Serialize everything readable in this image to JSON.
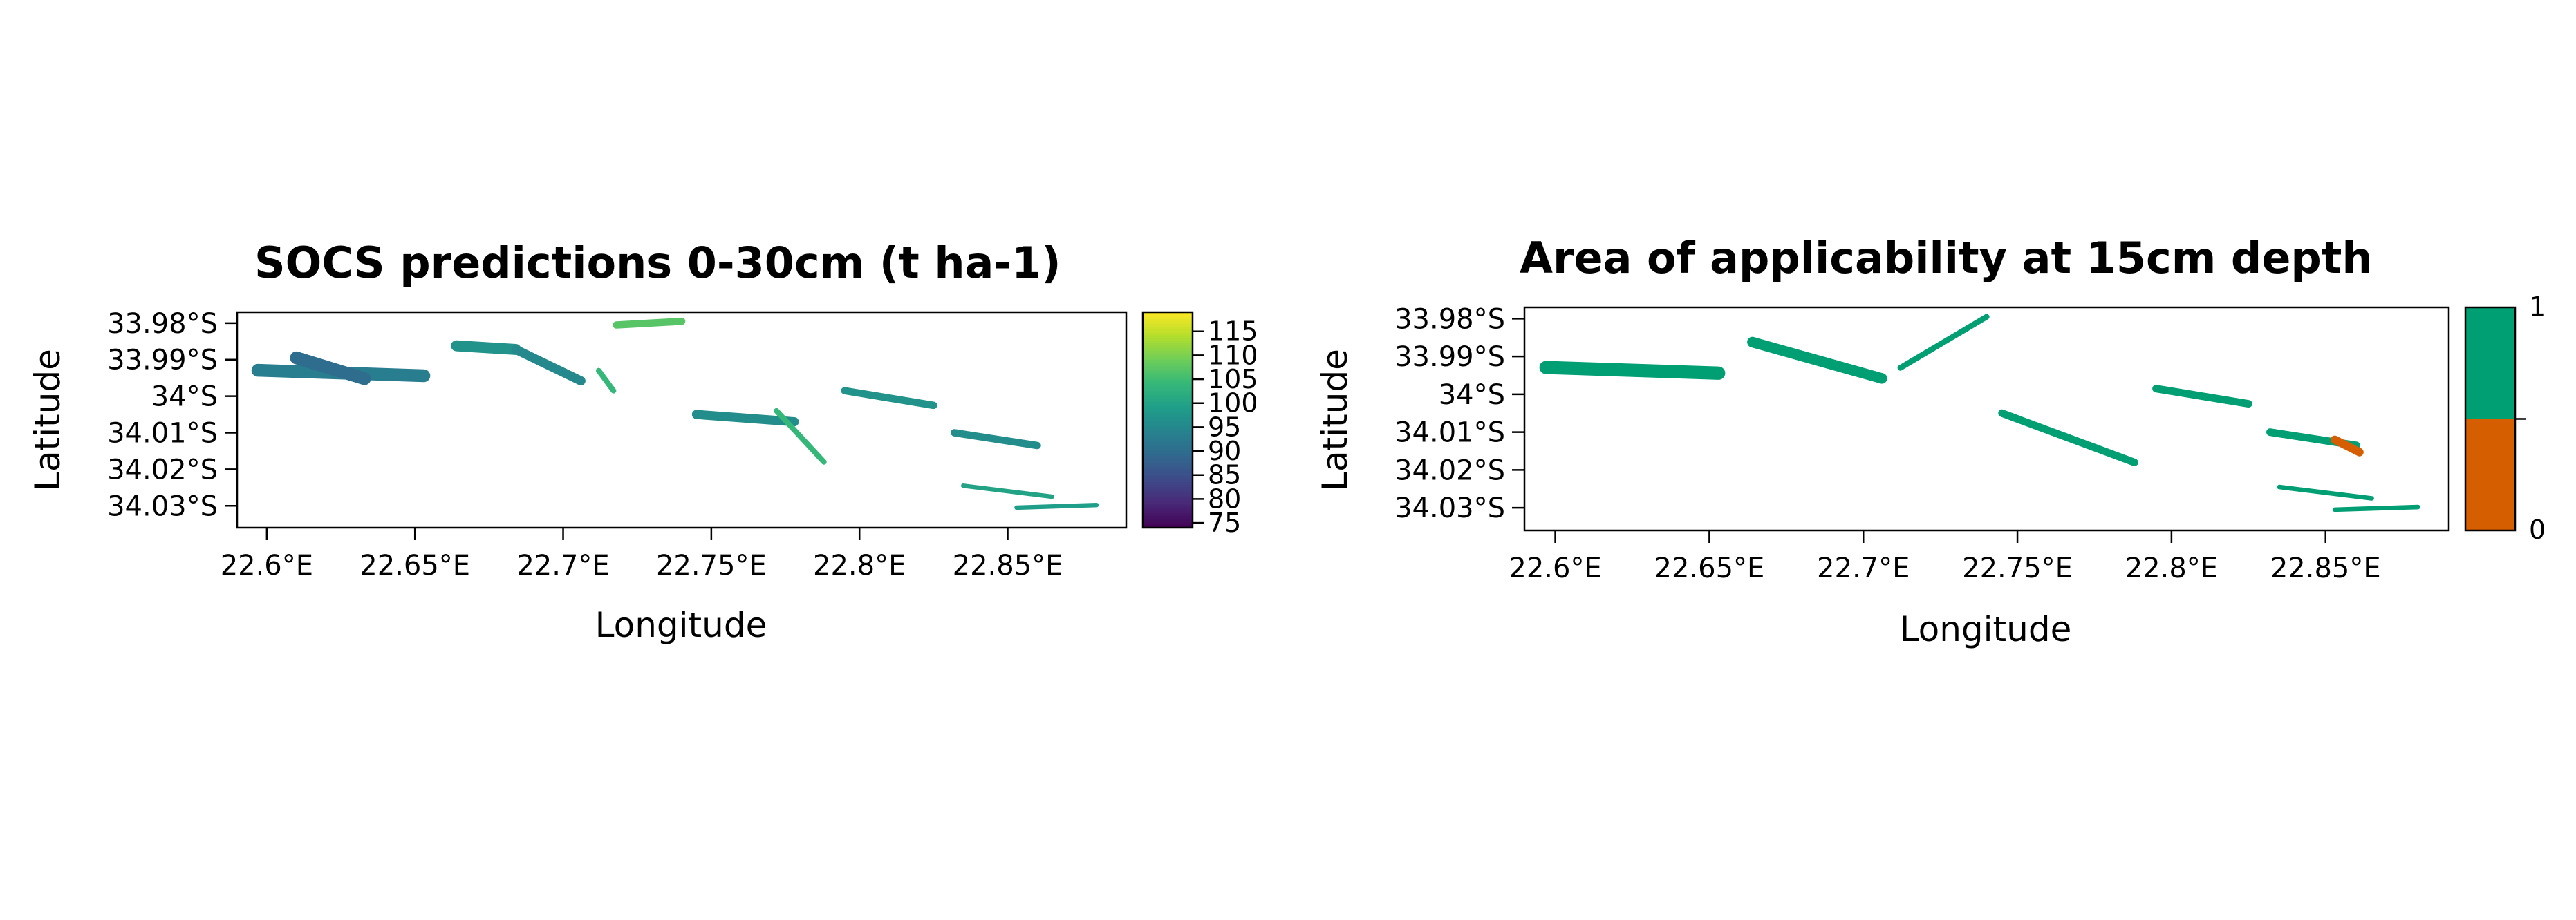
{
  "chart_data": [
    {
      "type": "heatmap",
      "title": "SOCS predictions 0-30cm (t ha-1)",
      "xlabel": "Longitude",
      "ylabel": "Latitude",
      "xlim": [
        22.59,
        22.89
      ],
      "ylim": [
        -34.036,
        -33.977
      ],
      "x_ticks": [
        22.6,
        22.65,
        22.7,
        22.75,
        22.8,
        22.85
      ],
      "x_tick_labels": [
        "22.6°E",
        "22.65°E",
        "22.7°E",
        "22.75°E",
        "22.8°E",
        "22.85°E"
      ],
      "y_ticks": [
        -33.98,
        -33.99,
        -34.0,
        -34.01,
        -34.02,
        -34.03
      ],
      "y_tick_labels": [
        "33.98°S",
        "33.99°S",
        "34°S",
        "34.01°S",
        "34.02°S",
        "34.03°S"
      ],
      "colorbar": {
        "palette": "viridis",
        "range": [
          74,
          119
        ],
        "ticks": [
          75,
          80,
          85,
          90,
          95,
          100,
          105,
          110,
          115
        ],
        "tick_labels": [
          "75",
          "80",
          "85",
          "90",
          "95",
          "100",
          "105",
          "110",
          "115"
        ]
      },
      "patches": [
        {
          "lon": 22.597,
          "lat": -33.9929,
          "lon2": 22.653,
          "lat2": -33.9944,
          "width": 0.0035,
          "value": 93
        },
        {
          "lon": 22.61,
          "lat": -33.9895,
          "lon2": 22.633,
          "lat2": -33.9952,
          "width": 0.0035,
          "value": 90
        },
        {
          "lon": 22.664,
          "lat": -33.9862,
          "lon2": 22.684,
          "lat2": -33.9872,
          "width": 0.003,
          "value": 97
        },
        {
          "lon": 22.684,
          "lat": -33.9872,
          "lon2": 22.706,
          "lat2": -33.9958,
          "width": 0.0025,
          "value": 95
        },
        {
          "lon": 22.712,
          "lat": -33.993,
          "lon2": 22.717,
          "lat2": -33.9985,
          "width": 0.0015,
          "value": 104
        },
        {
          "lon": 22.718,
          "lat": -33.9805,
          "lon2": 22.74,
          "lat2": -33.9795,
          "width": 0.002,
          "value": 107
        },
        {
          "lon": 22.745,
          "lat": -34.005,
          "lon2": 22.778,
          "lat2": -34.007,
          "width": 0.0025,
          "value": 96
        },
        {
          "lon": 22.772,
          "lat": -34.004,
          "lon2": 22.788,
          "lat2": -34.018,
          "width": 0.0015,
          "value": 104
        },
        {
          "lon": 22.795,
          "lat": -33.9985,
          "lon2": 22.825,
          "lat2": -34.0025,
          "width": 0.002,
          "value": 97
        },
        {
          "lon": 22.832,
          "lat": -34.01,
          "lon2": 22.86,
          "lat2": -34.0135,
          "width": 0.002,
          "value": 96
        },
        {
          "lon": 22.835,
          "lat": -34.0245,
          "lon2": 22.865,
          "lat2": -34.0275,
          "width": 0.0012,
          "value": 100
        },
        {
          "lon": 22.853,
          "lat": -34.0305,
          "lon2": 22.88,
          "lat2": -34.0298,
          "width": 0.0012,
          "value": 99
        }
      ]
    },
    {
      "type": "heatmap",
      "title": "Area of applicability at 15cm depth",
      "xlabel": "Longitude",
      "ylabel": "Latitude",
      "xlim": [
        22.59,
        22.89
      ],
      "ylim": [
        -34.036,
        -33.977
      ],
      "x_ticks": [
        22.6,
        22.65,
        22.7,
        22.75,
        22.8,
        22.85
      ],
      "x_tick_labels": [
        "22.6°E",
        "22.65°E",
        "22.7°E",
        "22.75°E",
        "22.8°E",
        "22.85°E"
      ],
      "y_ticks": [
        -33.98,
        -33.99,
        -34.0,
        -34.01,
        -34.02,
        -34.03
      ],
      "y_tick_labels": [
        "33.98°S",
        "33.99°S",
        "34°S",
        "34.01°S",
        "34.02°S",
        "34.03°S"
      ],
      "colorbar": {
        "classes": [
          {
            "value": 1,
            "color": "#009E73"
          },
          {
            "value": 0,
            "color": "#D55E00"
          }
        ],
        "tick_labels": [
          "1",
          "0"
        ]
      },
      "patches": [
        {
          "lon": 22.597,
          "lat": -33.9929,
          "lon2": 22.653,
          "lat2": -33.9944,
          "width": 0.0035,
          "value": 1
        },
        {
          "lon": 22.664,
          "lat": -33.9862,
          "lon2": 22.706,
          "lat2": -33.9958,
          "width": 0.0028,
          "value": 1
        },
        {
          "lon": 22.712,
          "lat": -33.993,
          "lon2": 22.74,
          "lat2": -33.9795,
          "width": 0.0015,
          "value": 1
        },
        {
          "lon": 22.745,
          "lat": -34.005,
          "lon2": 22.788,
          "lat2": -34.018,
          "width": 0.002,
          "value": 1
        },
        {
          "lon": 22.795,
          "lat": -33.9985,
          "lon2": 22.825,
          "lat2": -34.0025,
          "width": 0.002,
          "value": 1
        },
        {
          "lon": 22.832,
          "lat": -34.01,
          "lon2": 22.86,
          "lat2": -34.0135,
          "width": 0.002,
          "value": 1
        },
        {
          "lon": 22.853,
          "lat": -34.012,
          "lon2": 22.861,
          "lat2": -34.0153,
          "width": 0.0022,
          "value": 0
        },
        {
          "lon": 22.835,
          "lat": -34.0245,
          "lon2": 22.865,
          "lat2": -34.0275,
          "width": 0.0012,
          "value": 1
        },
        {
          "lon": 22.853,
          "lat": -34.0305,
          "lon2": 22.88,
          "lat2": -34.0298,
          "width": 0.0012,
          "value": 1
        }
      ]
    }
  ]
}
